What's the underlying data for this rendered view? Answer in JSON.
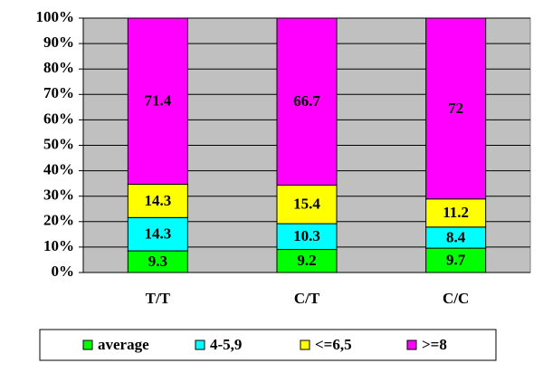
{
  "chart_data": {
    "type": "bar",
    "stacked": "percent",
    "categories": [
      "T/T",
      "C/T",
      "C/C"
    ],
    "series": [
      {
        "name": "average",
        "color": "#00ff00",
        "values": [
          9.3,
          9.2,
          9.7
        ]
      },
      {
        "name": "4-5,9",
        "color": "#00ffff",
        "values": [
          14.3,
          10.3,
          8.4
        ]
      },
      {
        "name": "<=6,5",
        "color": "#ffff00",
        "values": [
          14.3,
          15.4,
          11.2
        ]
      },
      {
        "name": ">=8",
        "color": "#ff00ff",
        "values": [
          71.4,
          66.7,
          72
        ]
      }
    ],
    "ylim": [
      0,
      100
    ],
    "yticks": [
      {
        "value": 0,
        "label": "0%"
      },
      {
        "value": 10,
        "label": "10%"
      },
      {
        "value": 20,
        "label": "20%"
      },
      {
        "value": 30,
        "label": "30%"
      },
      {
        "value": 40,
        "label": "40%"
      },
      {
        "value": 50,
        "label": "50%"
      },
      {
        "value": 60,
        "label": "60%"
      },
      {
        "value": 70,
        "label": "70%"
      },
      {
        "value": 80,
        "label": "80%"
      },
      {
        "value": 90,
        "label": "90%"
      },
      {
        "value": 100,
        "label": "100%"
      }
    ],
    "grid": true,
    "legend": "bottom"
  }
}
